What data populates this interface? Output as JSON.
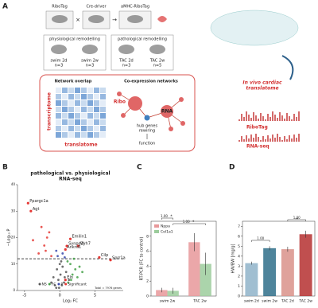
{
  "panel_a": {
    "label": "A",
    "mice": [
      "RiboTag",
      "Cre-driver",
      "aMHC-RiboTag"
    ],
    "groups": [
      {
        "title": "physiological remodelling",
        "cohorts": [
          [
            "swim 2d",
            "n=3"
          ],
          [
            "swim 2w",
            "n=3"
          ]
        ]
      },
      {
        "title": "pathological remodelling",
        "cohorts": [
          [
            "TAC 2d",
            "n=3"
          ],
          [
            "TAC 2w",
            "n=5"
          ]
        ]
      }
    ],
    "network": {
      "overlap": "Network overlap",
      "coexpression": "Co-expression networks",
      "transcriptome": "transcriptome",
      "translatome": "translatome",
      "ribo": "Ribo",
      "rna": "RNA",
      "hub": [
        "hub genes",
        "rewiring"
      ],
      "function": "function"
    },
    "cardiac": [
      "In vivo cardiac",
      "translatome"
    ],
    "tracks": [
      "RiboTag",
      "RNA-seq"
    ]
  },
  "chart_data": [
    {
      "type": "scatter",
      "label": "B",
      "title": "pathological vs. physiological",
      "subtitle": "RNA-seq",
      "xlabel": "Log₂ FC",
      "ylabel": "−Log₁₀ P",
      "xlim": [
        -6,
        9
      ],
      "xticks": [
        -5,
        0,
        5
      ],
      "ylim": [
        0,
        40
      ],
      "yticks": [
        0,
        10,
        20,
        30,
        40
      ],
      "threshold": 12,
      "series": [
        {
          "name": "NS",
          "color": "#555555",
          "x": [
            -0.5,
            0.3,
            -0.2,
            0.6,
            -0.9,
            0.1,
            0.9,
            -0.4,
            0.4,
            -1.2,
            1.3,
            0.0,
            -0.7,
            0.7,
            0.2,
            -0.1
          ],
          "values": [
            1,
            2,
            4,
            3,
            5,
            6,
            7,
            8,
            9,
            3,
            4,
            10,
            2,
            5,
            11,
            1
          ]
        },
        {
          "name": "FC",
          "color": "#43a047",
          "x": [
            1.2,
            1.8,
            2.2,
            1.5,
            2.8,
            1.1,
            2.5,
            3.2,
            1.6,
            2.0
          ],
          "values": [
            3,
            6,
            8,
            10,
            9,
            11,
            5,
            7,
            4,
            12
          ]
        },
        {
          "name": "P",
          "color": "#3949ab",
          "x": [
            -0.3,
            0.4,
            0.7,
            -0.5
          ],
          "values": [
            13,
            14,
            12.5,
            15
          ]
        },
        {
          "name": "Significant",
          "color": "#e53935",
          "x": [
            -3.0,
            -2.2,
            -1.5,
            -3.8,
            -2.6,
            -1.2,
            -2.0,
            -1.8
          ],
          "values": [
            14,
            17,
            22,
            19,
            24,
            13,
            15,
            20
          ]
        }
      ],
      "annotations": [
        {
          "text": "Ppargc1a",
          "x": -4.5,
          "y": 33
        },
        {
          "text": "Agt",
          "x": -4.1,
          "y": 30
        },
        {
          "text": "Emilin1",
          "x": 1.5,
          "y": 19.5
        },
        {
          "text": "Synpo2l",
          "x": 1.0,
          "y": 16.8
        },
        {
          "text": "Myh7",
          "x": 2.6,
          "y": 16.8
        },
        {
          "text": "Ankrd1",
          "x": 0.8,
          "y": 15.5
        },
        {
          "text": "Cilp",
          "x": 5.6,
          "y": 12.5
        },
        {
          "text": "Sprr1a",
          "x": 7.2,
          "y": 11.5
        },
        {
          "text": "Eln",
          "x": 0.8,
          "y": 4
        }
      ],
      "note": "Total = 7976 genes"
    },
    {
      "type": "bar",
      "label": "C",
      "ylabel": "RT-PCR (FC to control)",
      "categories": [
        "swim 2w",
        "TAC 2w"
      ],
      "ylim": [
        0,
        10
      ],
      "yticks": [
        0,
        2,
        4,
        6,
        8
      ],
      "series": [
        {
          "name": "Nppa",
          "color": "#e8989a",
          "values": [
            0.8,
            7.2
          ],
          "errors": [
            0.3,
            1.2
          ]
        },
        {
          "name": "Col1a1",
          "color": "#9ccc9c",
          "values": [
            0.7,
            4.3
          ],
          "errors": [
            0.4,
            1.5
          ]
        }
      ],
      "annotations": [
        "1.00",
        "*",
        "1.00",
        "*"
      ]
    },
    {
      "type": "bar",
      "label": "D",
      "ylabel": "HW/BW [mg/g]",
      "categories": [
        "swim 2d",
        "swim 2w",
        "TAC 2d",
        "TAC 2w"
      ],
      "ylim": [
        0,
        7.5
      ],
      "yticks": [
        0,
        1,
        2,
        3,
        4,
        5,
        6,
        7
      ],
      "values": [
        3.3,
        4.8,
        4.7,
        6.2
      ],
      "errors": [
        0.15,
        0.2,
        0.25,
        0.35
      ],
      "colors": [
        "#8fb3c9",
        "#2f6f8a",
        "#d9928a",
        "#b53030"
      ],
      "annotations": [
        "1.00",
        "1.00",
        "**"
      ]
    }
  ]
}
